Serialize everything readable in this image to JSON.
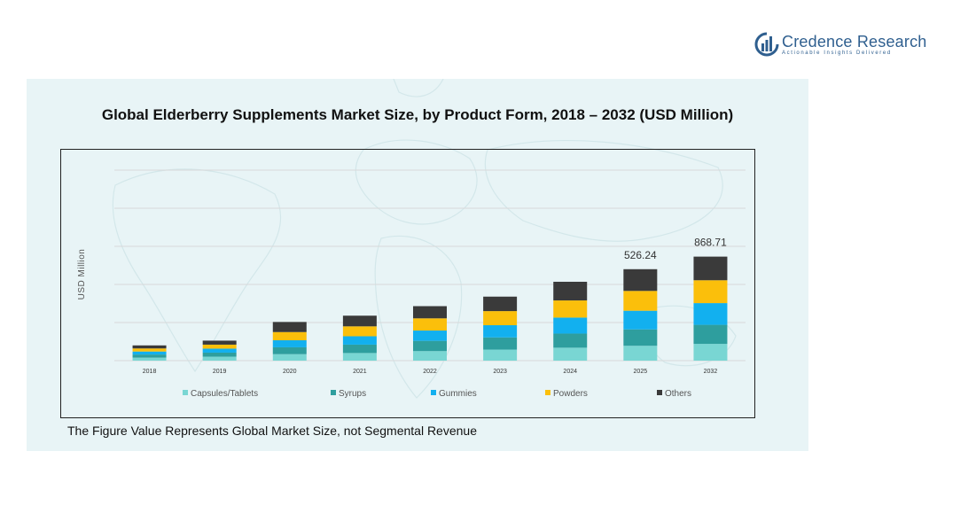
{
  "brand": {
    "name": "Credence Research",
    "tagline": "Actionable Insights Delivered",
    "colors": {
      "text": "#2f5f8f",
      "icon": "#2f5f8f"
    }
  },
  "footnote": "The Figure Value Represents Global Market Size, not Segmental Revenue",
  "chart_data": {
    "type": "bar",
    "stacked": true,
    "title": "Global Elderberry Supplements Market Size, by Product Form, 2018 – 2032 (USD Million)",
    "xlabel": "",
    "ylabel": "USD Million",
    "ylim": [
      0,
      1000
    ],
    "grid": true,
    "legend_position": "bottom",
    "categories": [
      "2018",
      "2019",
      "2020",
      "2021",
      "2022",
      "2023",
      "2024",
      "2025",
      "2032"
    ],
    "series": [
      {
        "name": "Capsules/Tablets",
        "color": "#79d6d3",
        "values": [
          16,
          21,
          34,
          40,
          50,
          58,
          68,
          78,
          88
        ]
      },
      {
        "name": "Syrups",
        "color": "#2e9e9e",
        "values": [
          16,
          21,
          36,
          44,
          54,
          64,
          74,
          86,
          100
        ]
      },
      {
        "name": "Gummies",
        "color": "#12b0ef",
        "values": [
          16,
          21,
          37,
          44,
          54,
          64,
          84,
          98,
          114
        ]
      },
      {
        "name": "Powders",
        "color": "#fbbf0b",
        "values": [
          16,
          21,
          43,
          52,
          64,
          74,
          90,
          104,
          120
        ]
      },
      {
        "name": "Others",
        "color": "#3a3a3a",
        "values": [
          16,
          21,
          53,
          56,
          64,
          76,
          98,
          114,
          124
        ]
      }
    ],
    "data_labels": [
      {
        "category": "2025",
        "text": "526.24"
      },
      {
        "category": "2032",
        "text": "868.71"
      }
    ]
  }
}
